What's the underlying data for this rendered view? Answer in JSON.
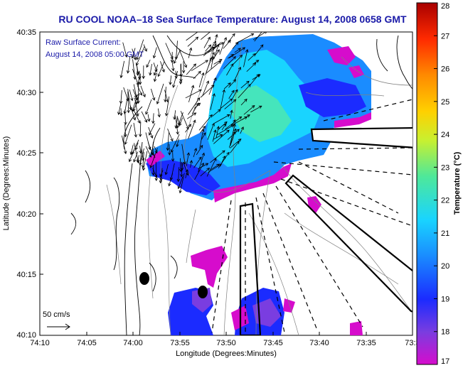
{
  "header": {
    "title": "RU COOL  NOAA–18  Sea Surface Temperature:  August 14, 2008 0658 GMT"
  },
  "current_info": {
    "line1": "Raw Surface Current:",
    "line2": "August 14, 2008 05:00 GMT"
  },
  "scale_label": "50 cm/s",
  "axes": {
    "xlabel": "Longitude (Degrees:Minutes)",
    "ylabel": "Latitude (Degrees:Minutes)",
    "x_ticks": [
      "74:10",
      "74:05",
      "74:00",
      "73:55",
      "73:50",
      "73:45",
      "73:40",
      "73:35",
      "73:3"
    ],
    "y_ticks": [
      "40:35",
      "40:30",
      "40:25",
      "40:20",
      "40:15",
      "40:10"
    ]
  },
  "colorbar": {
    "label": "Temperature (°C)",
    "ticks": [
      "28",
      "27",
      "26",
      "25",
      "24",
      "23",
      "22",
      "21",
      "20",
      "19",
      "18",
      "17"
    ],
    "min": 17,
    "max": 28,
    "colors": [
      "#d60ccc",
      "#7a3de0",
      "#1b2bff",
      "#1a8cff",
      "#19d4ff",
      "#4ee89a",
      "#c8f030",
      "#ffd000",
      "#ff8a00",
      "#ff2a00",
      "#a80000"
    ]
  },
  "colors": {
    "title": "#1a1aa8",
    "coast": "#000000",
    "bathy": "#808080"
  }
}
